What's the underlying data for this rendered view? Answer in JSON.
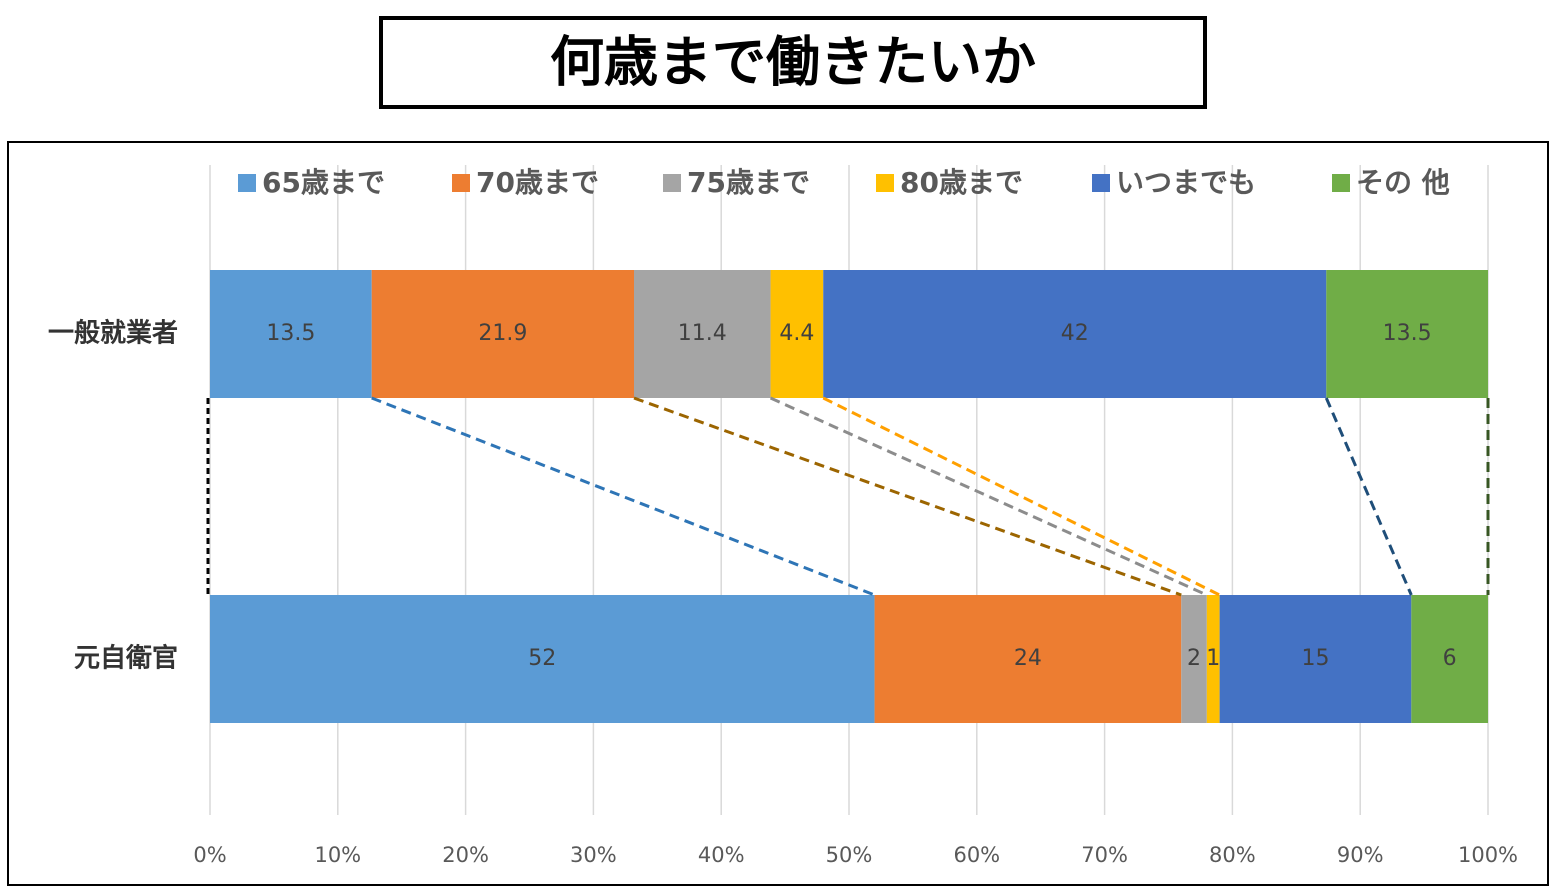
{
  "chart_data": {
    "type": "bar",
    "stacked": "percent",
    "orientation": "horizontal",
    "title": "何歳まで働きたいか",
    "categories": [
      "一般就業者",
      "元自衛官"
    ],
    "series": [
      {
        "name": "65歳まで",
        "color": "#5b9bd5",
        "values": [
          13.5,
          52
        ]
      },
      {
        "name": "70歳まで",
        "color": "#ed7d31",
        "values": [
          21.9,
          24
        ]
      },
      {
        "name": "75歳まで",
        "color": "#a5a5a5",
        "values": [
          11.4,
          2
        ]
      },
      {
        "name": "80歳まで",
        "color": "#ffc000",
        "values": [
          4.4,
          1
        ]
      },
      {
        "name": "いつまでも",
        "color": "#4472c4",
        "values": [
          42,
          15
        ]
      },
      {
        "name": "その 他",
        "color": "#70ad47",
        "values": [
          13.5,
          6
        ]
      }
    ],
    "xlim": [
      0,
      100
    ],
    "xticks": [
      {
        "value": 0,
        "label": "0%"
      },
      {
        "value": 10,
        "label": "10%"
      },
      {
        "value": 20,
        "label": "20%"
      },
      {
        "value": 30,
        "label": "30%"
      },
      {
        "value": 40,
        "label": "40%"
      },
      {
        "value": 50,
        "label": "50%"
      },
      {
        "value": 60,
        "label": "60%"
      },
      {
        "value": 70,
        "label": "70%"
      },
      {
        "value": 80,
        "label": "80%"
      },
      {
        "value": 90,
        "label": "90%"
      },
      {
        "value": 100,
        "label": "100%"
      }
    ],
    "grid": true,
    "legend": "top"
  }
}
